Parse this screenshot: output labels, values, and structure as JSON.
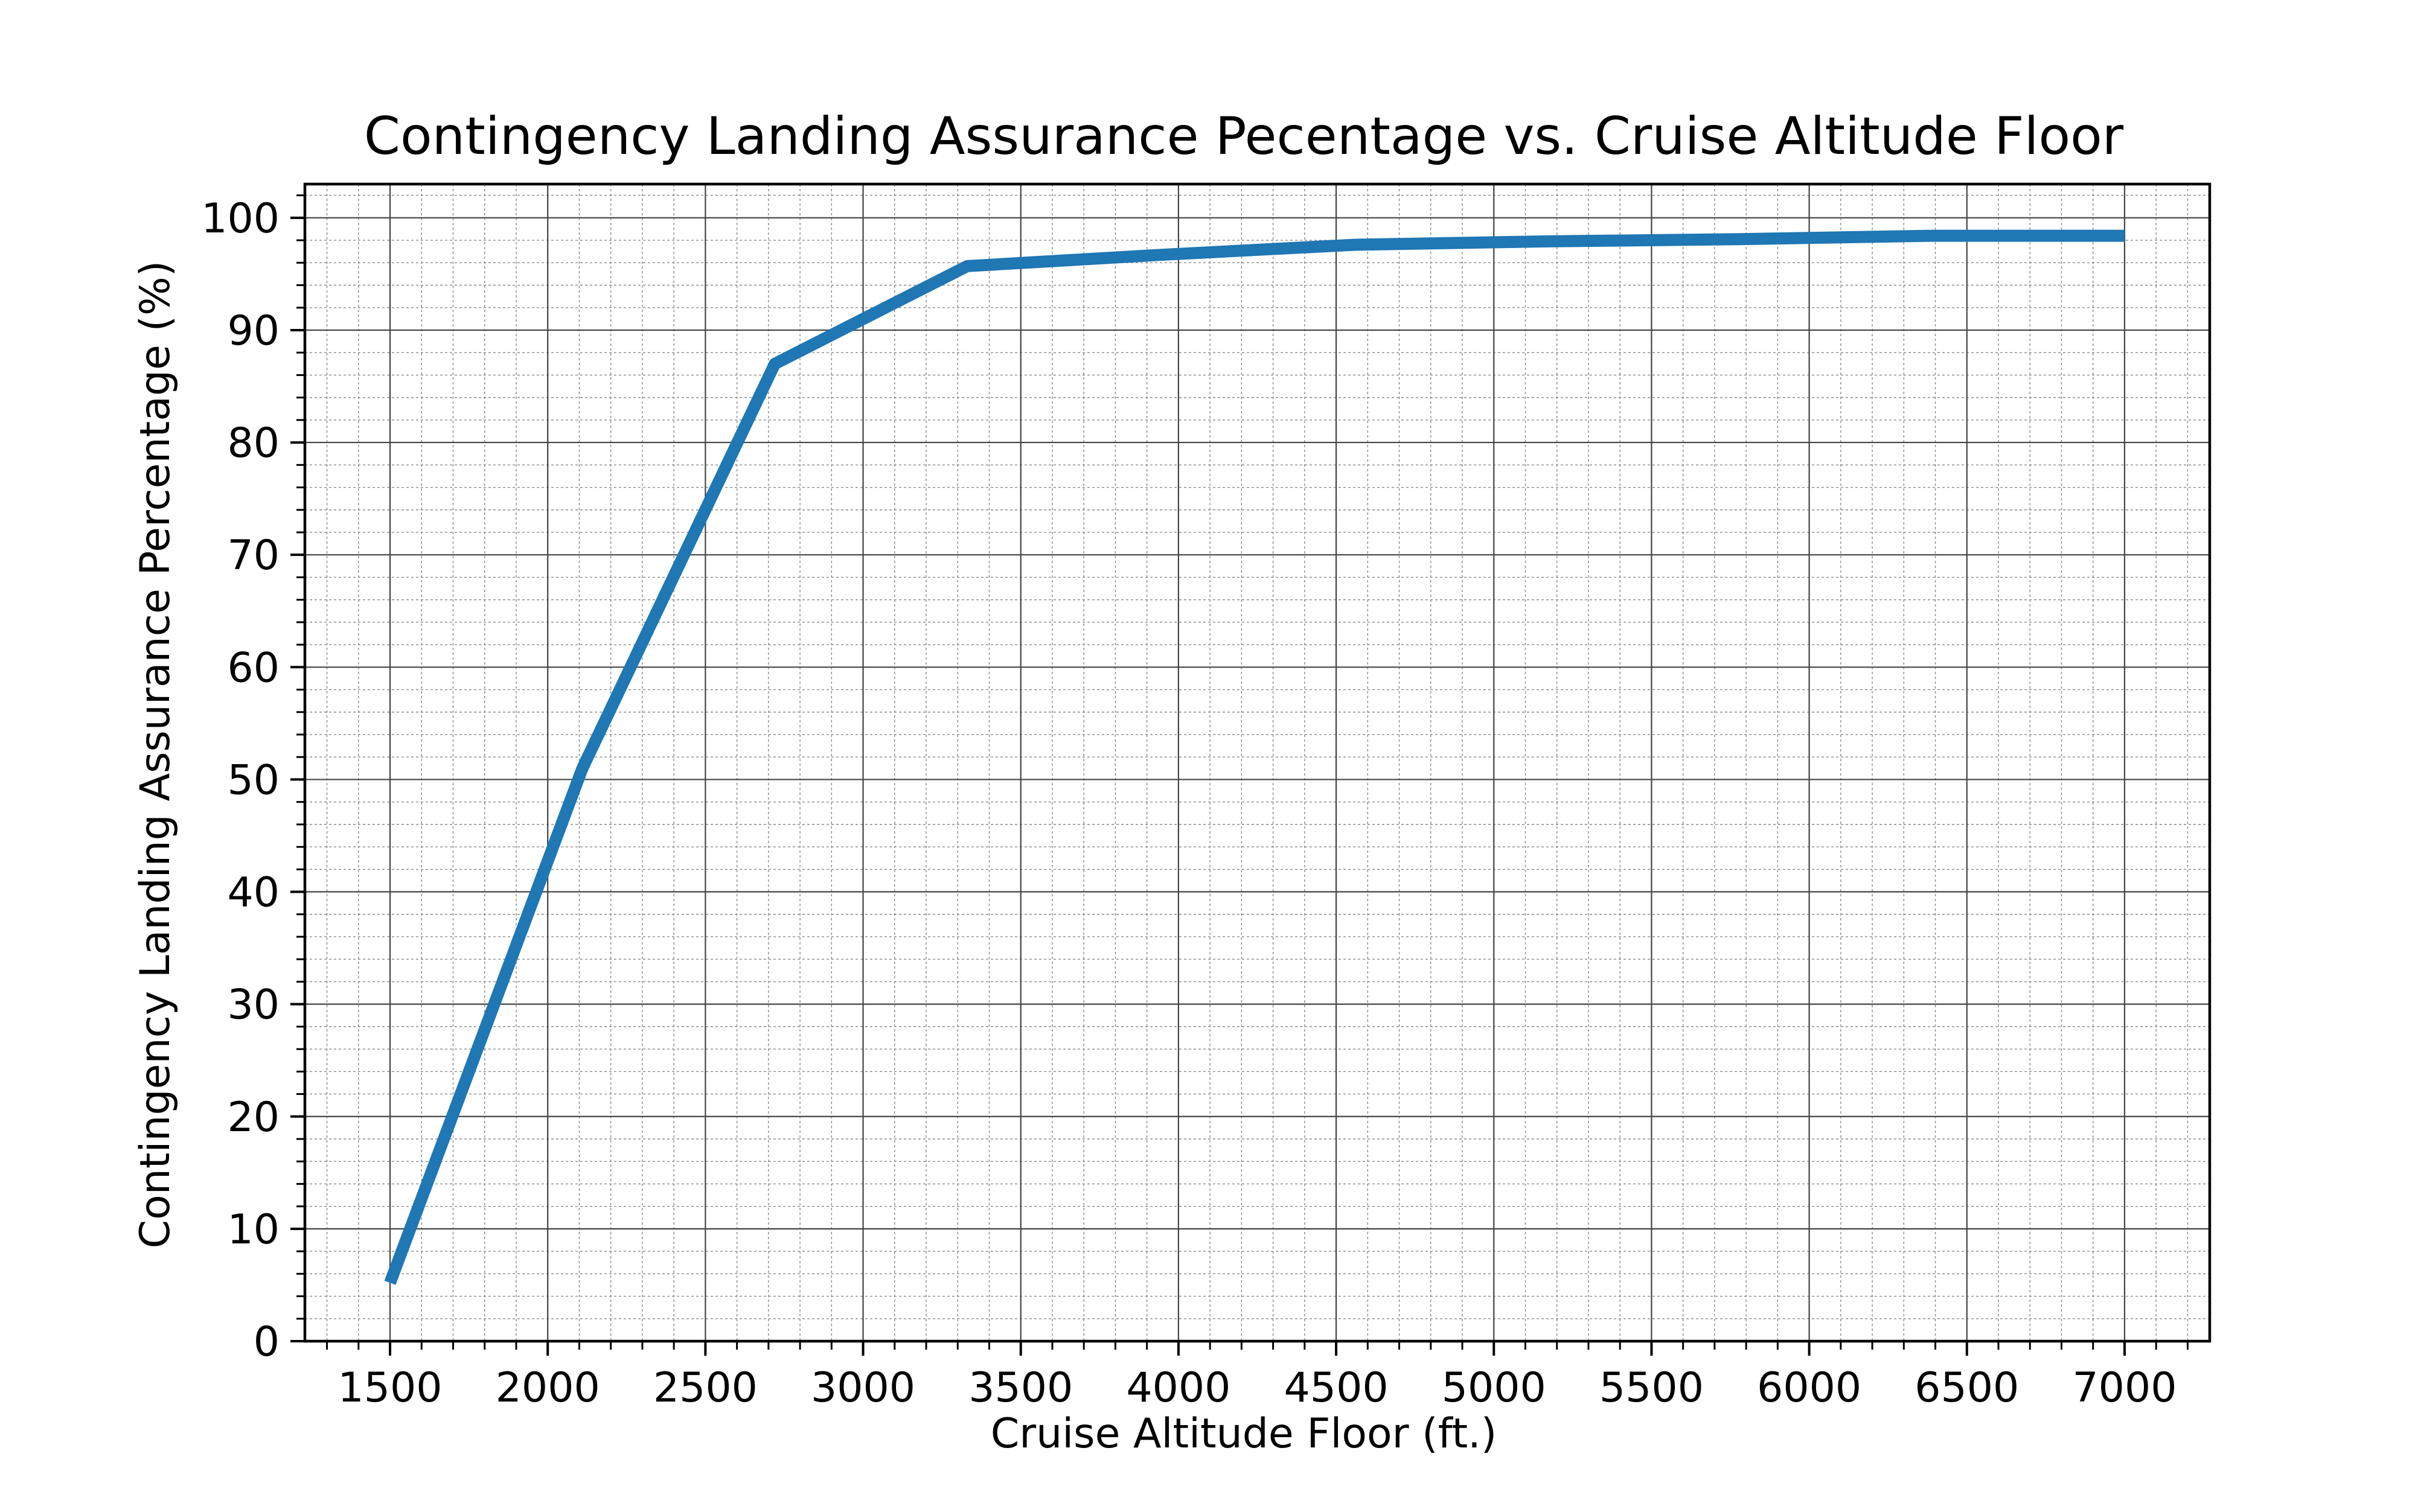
{
  "chart_data": {
    "type": "line",
    "title": "Contingency Landing Assurance Pecentage vs. Cruise Altitude Floor",
    "xlabel": "Cruise Altitude Floor (ft.)",
    "ylabel": "Contingency Landing Assurance Percentage (%)",
    "xlim": [
      1230,
      7270
    ],
    "ylim": [
      0,
      103
    ],
    "x_ticks": [
      1500,
      2000,
      2500,
      3000,
      3500,
      4000,
      4500,
      5000,
      5500,
      6000,
      6500,
      7000
    ],
    "y_ticks": [
      0,
      10,
      20,
      30,
      40,
      50,
      60,
      70,
      80,
      90,
      100
    ],
    "x_minor_step": 100,
    "y_minor_step": 2,
    "grid": true,
    "series": [
      {
        "color": "#1f77b4",
        "x": [
          1500,
          2110,
          2720,
          3330,
          3940,
          4560,
          5170,
          5780,
          6390,
          7000
        ],
        "y": [
          5.2,
          51.0,
          87.0,
          95.7,
          96.7,
          97.6,
          97.9,
          98.1,
          98.4,
          98.4
        ]
      }
    ]
  }
}
